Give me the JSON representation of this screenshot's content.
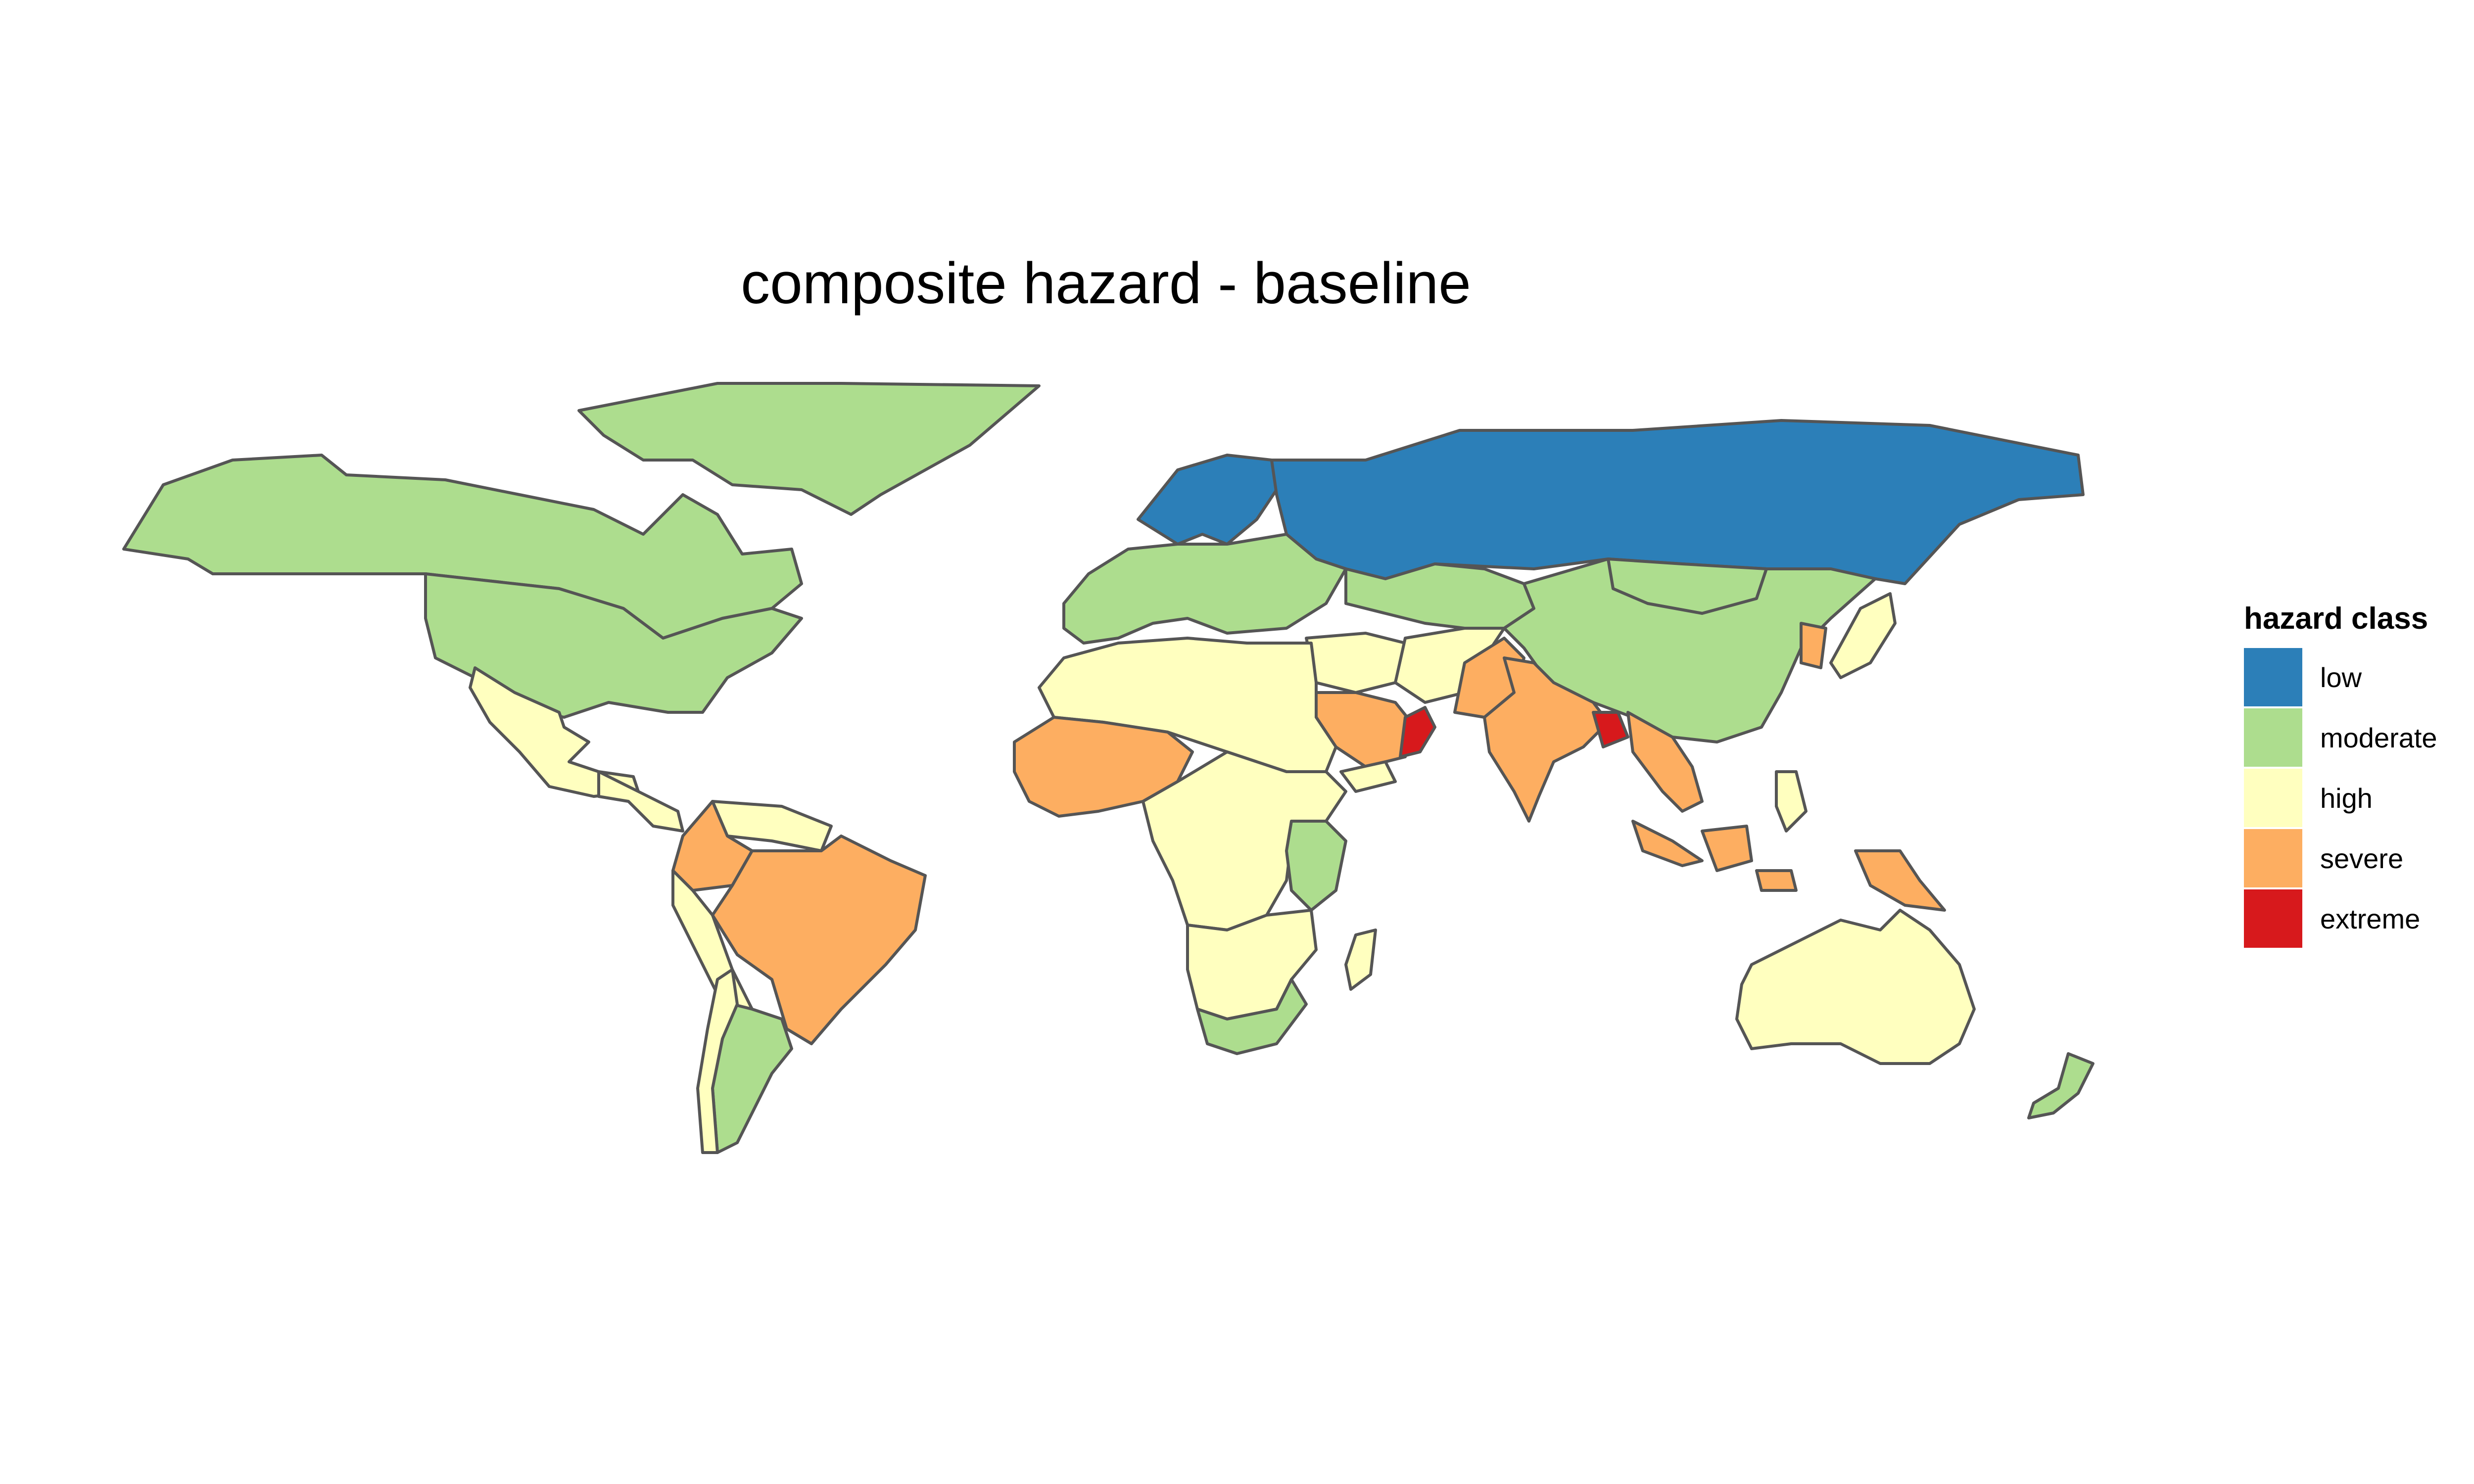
{
  "map": {
    "title": "composite hazard - baseline",
    "legend": {
      "title": "hazard class",
      "classes": [
        {
          "label": "low",
          "color": "#2c7fb8"
        },
        {
          "label": "moderate",
          "color": "#addd8e"
        },
        {
          "label": "high",
          "color": "#ffffbf"
        },
        {
          "label": "severe",
          "color": "#fdae61"
        },
        {
          "label": "extreme",
          "color": "#d7191c"
        }
      ]
    },
    "regions": [
      {
        "name": "Canada",
        "class": "moderate"
      },
      {
        "name": "United States",
        "class": "moderate"
      },
      {
        "name": "Greenland",
        "class": "moderate"
      },
      {
        "name": "Mexico",
        "class": "high"
      },
      {
        "name": "Central America",
        "class": "high"
      },
      {
        "name": "Colombia",
        "class": "severe"
      },
      {
        "name": "Venezuela",
        "class": "high"
      },
      {
        "name": "Brazil",
        "class": "severe"
      },
      {
        "name": "Peru",
        "class": "high"
      },
      {
        "name": "Argentina",
        "class": "moderate"
      },
      {
        "name": "Chile",
        "class": "high"
      },
      {
        "name": "Russia",
        "class": "low"
      },
      {
        "name": "Scandinavia",
        "class": "low"
      },
      {
        "name": "Europe",
        "class": "moderate"
      },
      {
        "name": "Kazakhstan / Central Asia",
        "class": "moderate"
      },
      {
        "name": "Mongolia",
        "class": "moderate"
      },
      {
        "name": "China",
        "class": "moderate"
      },
      {
        "name": "Japan",
        "class": "high"
      },
      {
        "name": "Korea",
        "class": "severe"
      },
      {
        "name": "North Africa",
        "class": "high"
      },
      {
        "name": "West Africa",
        "class": "severe"
      },
      {
        "name": "Central Africa",
        "class": "high"
      },
      {
        "name": "Kenya / Tanzania",
        "class": "moderate"
      },
      {
        "name": "Southern Africa",
        "class": "high"
      },
      {
        "name": "South Africa",
        "class": "moderate"
      },
      {
        "name": "Madagascar",
        "class": "high"
      },
      {
        "name": "Middle East",
        "class": "high"
      },
      {
        "name": "Saudi Arabia",
        "class": "severe"
      },
      {
        "name": "Oman",
        "class": "extreme"
      },
      {
        "name": "Yemen",
        "class": "high"
      },
      {
        "name": "Iran / Afghanistan",
        "class": "high"
      },
      {
        "name": "Pakistan",
        "class": "severe"
      },
      {
        "name": "India",
        "class": "severe"
      },
      {
        "name": "Bangladesh",
        "class": "extreme"
      },
      {
        "name": "Southeast Asia",
        "class": "severe"
      },
      {
        "name": "Indonesia",
        "class": "severe"
      },
      {
        "name": "Philippines",
        "class": "high"
      },
      {
        "name": "Papua New Guinea",
        "class": "severe"
      },
      {
        "name": "Australia",
        "class": "high"
      },
      {
        "name": "New Zealand",
        "class": "moderate"
      }
    ]
  }
}
